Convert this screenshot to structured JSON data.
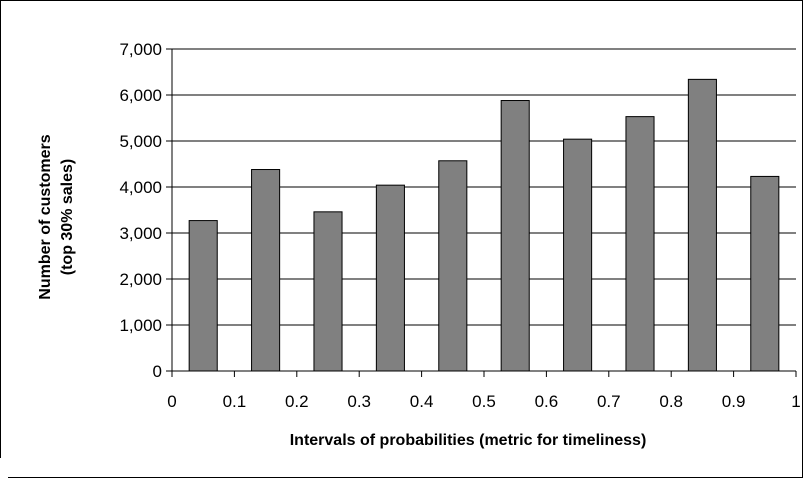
{
  "chart_data": {
    "type": "bar",
    "categories": [
      "0-0.1",
      "0.1-0.2",
      "0.2-0.3",
      "0.3-0.4",
      "0.4-0.5",
      "0.5-0.6",
      "0.6-0.7",
      "0.7-0.8",
      "0.8-0.9",
      "0.9-1"
    ],
    "values": [
      3270,
      4380,
      3460,
      4040,
      4570,
      5880,
      5040,
      5530,
      6340,
      4230
    ],
    "xlabel": "Intervals of probabilities (metric for timeliness)",
    "ylabel_lines": [
      "Number of customers",
      "(top 30% sales)"
    ],
    "ylim": [
      0,
      7000
    ],
    "xlim": [
      0,
      1
    ],
    "y_ticks": [
      "0",
      "1,000",
      "2,000",
      "3,000",
      "4,000",
      "5,000",
      "6,000",
      "7,000"
    ],
    "x_ticks": [
      "0",
      "0.1",
      "0.2",
      "0.3",
      "0.4",
      "0.5",
      "0.6",
      "0.7",
      "0.8",
      "0.9",
      "1"
    ],
    "grid": true,
    "legend": "none",
    "bar_color": "#808080",
    "bar_outline": "#000000",
    "grid_color": "#000000"
  }
}
